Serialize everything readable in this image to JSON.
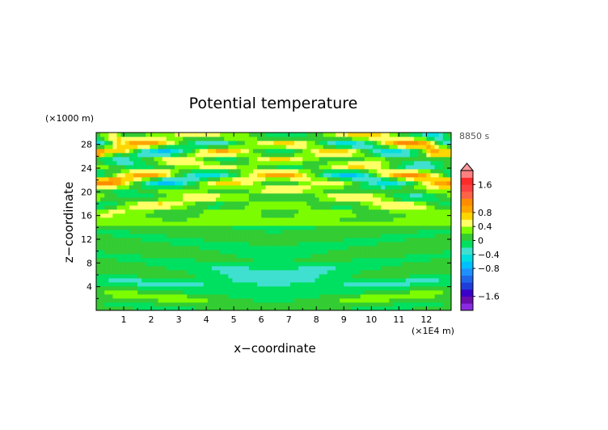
{
  "chart_data": {
    "type": "heatmap",
    "title": "Potential temperature",
    "xlabel": "x−coordinate",
    "ylabel": "z−coordinate",
    "x_unit": "(×1E4 m)",
    "y_unit": "(×1000 m)",
    "time_label": "8850 s",
    "x_range": [
      0,
      12.9
    ],
    "y_range": [
      0,
      30
    ],
    "x_ticks": [
      "1",
      "2",
      "3",
      "4",
      "5",
      "6",
      "7",
      "8",
      "9",
      "10",
      "11",
      "12"
    ],
    "x_tick_values": [
      1,
      2,
      3,
      4,
      5,
      6,
      7,
      8,
      9,
      10,
      11,
      12
    ],
    "y_ticks": [
      "4",
      "8",
      "12",
      "16",
      "20",
      "24",
      "28"
    ],
    "y_tick_values": [
      4,
      8,
      12,
      16,
      20,
      24,
      28
    ],
    "colorbar": {
      "range": [
        -2.0,
        2.0
      ],
      "levels": [
        -2.0,
        -1.8,
        -1.6,
        -1.4,
        -1.2,
        -1.0,
        -0.8,
        -0.6,
        -0.4,
        -0.2,
        0,
        0.2,
        0.4,
        0.6,
        0.8,
        1.0,
        1.2,
        1.4,
        1.6,
        1.8,
        2.0
      ],
      "colors": [
        "#8a2be2",
        "#6a0dad",
        "#3a00c8",
        "#1f3dd9",
        "#1f66e8",
        "#1e90ff",
        "#00bfff",
        "#00dfdf",
        "#40e0d0",
        "#00e060",
        "#33cc33",
        "#7cfc00",
        "#ffff66",
        "#ffd700",
        "#ffa500",
        "#ff8c00",
        "#ff6347",
        "#ff4040",
        "#ff2a2a",
        "#ff8080"
      ],
      "tick_labels": [
        "1.6",
        "0.8",
        "0.4",
        "0",
        "−0.4",
        "−0.8",
        "−1.6"
      ],
      "tick_values": [
        1.6,
        0.8,
        0.4,
        0,
        -0.4,
        -0.8,
        -1.6
      ]
    }
  }
}
